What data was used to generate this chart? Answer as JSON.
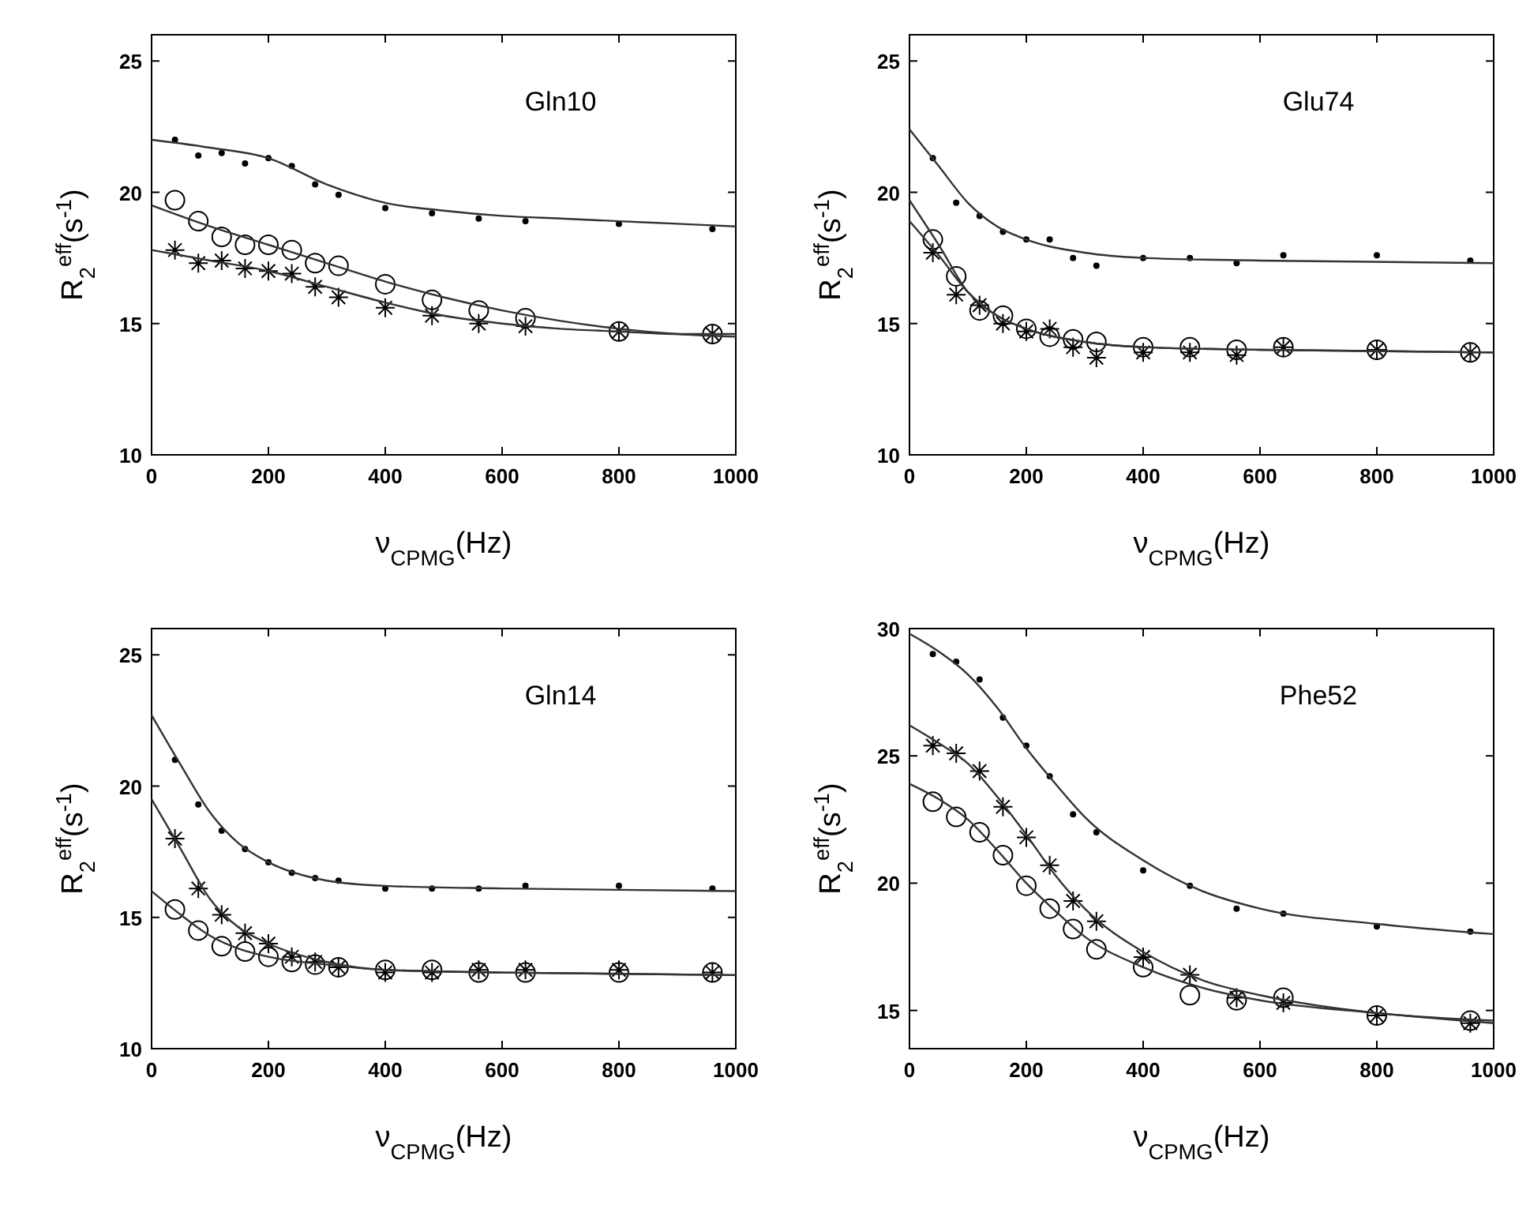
{
  "chart_data": [
    {
      "type": "scatter",
      "title": "Gln10",
      "xlabel": "ν$_{CPMG}$(Hz)",
      "ylabel": "R$_{2}$$^{eff}$(s$^{-1}$)",
      "xlim": [
        0,
        1000
      ],
      "ylim": [
        10,
        26
      ],
      "xticks": [
        0,
        200,
        400,
        600,
        800,
        1000
      ],
      "yticks": [
        10,
        15,
        20,
        25
      ],
      "grid": false,
      "series": [
        {
          "marker": "point",
          "color": "#000000",
          "x": [
            40,
            80,
            120,
            160,
            200,
            240,
            280,
            320,
            400,
            480,
            560,
            640,
            800,
            960
          ],
          "values": [
            22.0,
            21.4,
            21.5,
            21.1,
            21.3,
            21.0,
            20.3,
            19.9,
            19.4,
            19.2,
            19.0,
            18.9,
            18.8,
            18.6
          ]
        },
        {
          "type": "scatter",
          "marker": "circle",
          "color": "#000000",
          "x": [
            40,
            80,
            120,
            160,
            200,
            240,
            280,
            320,
            400,
            480,
            560,
            640,
            800,
            960
          ],
          "values": [
            19.7,
            18.9,
            18.3,
            18.0,
            18.0,
            17.8,
            17.3,
            17.2,
            16.5,
            15.9,
            15.5,
            15.2,
            14.7,
            14.6
          ]
        },
        {
          "marker": "cross",
          "color": "#000000",
          "x": [
            40,
            80,
            120,
            160,
            200,
            240,
            280,
            320,
            400,
            480,
            560,
            640,
            800,
            960
          ],
          "values": [
            17.8,
            17.3,
            17.4,
            17.1,
            17.0,
            16.9,
            16.4,
            16.0,
            15.6,
            15.3,
            15.0,
            14.9,
            14.7,
            14.6
          ]
        },
        {
          "type": "line",
          "marker": "none",
          "color": "#333333",
          "x": [
            0,
            100,
            200,
            300,
            400,
            500,
            600,
            700,
            800,
            900,
            1000
          ],
          "values": [
            22.0,
            21.7,
            21.3,
            20.3,
            19.6,
            19.3,
            19.1,
            19.0,
            18.9,
            18.8,
            18.7
          ]
        },
        {
          "type": "line",
          "marker": "none",
          "color": "#333333",
          "x": [
            0,
            100,
            200,
            300,
            400,
            500,
            600,
            700,
            800,
            900,
            1000
          ],
          "values": [
            19.5,
            18.7,
            18.0,
            17.3,
            16.6,
            16.0,
            15.5,
            15.1,
            14.8,
            14.6,
            14.5
          ]
        },
        {
          "type": "line",
          "marker": "none",
          "color": "#333333",
          "x": [
            0,
            100,
            200,
            300,
            400,
            500,
            600,
            700,
            800,
            900,
            1000
          ],
          "values": [
            17.8,
            17.4,
            17.0,
            16.4,
            15.8,
            15.3,
            15.0,
            14.8,
            14.7,
            14.6,
            14.6
          ]
        }
      ]
    },
    {
      "type": "scatter",
      "title": "Glu74",
      "xlabel": "ν$_{CPMG}$(Hz)",
      "ylabel": "R$_{2}$$^{eff}$(s$^{-1}$)",
      "xlim": [
        0,
        1000
      ],
      "ylim": [
        10,
        26
      ],
      "xticks": [
        0,
        200,
        400,
        600,
        800,
        1000
      ],
      "yticks": [
        10,
        15,
        20,
        25
      ],
      "grid": false,
      "series": [
        {
          "marker": "point",
          "color": "#000000",
          "x": [
            40,
            80,
            120,
            160,
            200,
            240,
            280,
            320,
            400,
            480,
            560,
            640,
            800,
            960
          ],
          "values": [
            21.3,
            19.6,
            19.1,
            18.5,
            18.2,
            18.2,
            17.5,
            17.2,
            17.5,
            17.5,
            17.3,
            17.6,
            17.6,
            17.4
          ]
        },
        {
          "type": "scatter",
          "marker": "circle",
          "color": "#000000",
          "x": [
            40,
            80,
            120,
            160,
            200,
            240,
            280,
            320,
            400,
            480,
            560,
            640,
            800,
            960
          ],
          "values": [
            18.2,
            16.8,
            15.5,
            15.3,
            14.8,
            14.5,
            14.4,
            14.3,
            14.1,
            14.1,
            14.0,
            14.1,
            14.0,
            13.9
          ]
        },
        {
          "marker": "cross",
          "color": "#000000",
          "x": [
            40,
            80,
            120,
            160,
            200,
            240,
            280,
            320,
            400,
            480,
            560,
            640,
            800,
            960
          ],
          "values": [
            17.7,
            16.1,
            15.7,
            15.0,
            14.7,
            14.8,
            14.1,
            13.7,
            13.9,
            13.9,
            13.8,
            14.1,
            14.0,
            13.9
          ]
        },
        {
          "type": "line",
          "marker": "none",
          "color": "#333333",
          "x": [
            0,
            50,
            100,
            150,
            200,
            300,
            400,
            600,
            1000
          ],
          "values": [
            22.4,
            21.0,
            19.6,
            18.7,
            18.2,
            17.7,
            17.5,
            17.4,
            17.3
          ]
        },
        {
          "type": "line",
          "marker": "none",
          "color": "#333333",
          "x": [
            0,
            50,
            100,
            150,
            200,
            300,
            400,
            600,
            1000
          ],
          "values": [
            19.7,
            18.0,
            16.2,
            15.3,
            14.8,
            14.3,
            14.1,
            14.0,
            13.9
          ]
        },
        {
          "type": "line",
          "marker": "none",
          "color": "#333333",
          "x": [
            0,
            50,
            100,
            150,
            200,
            300,
            400,
            600,
            1000
          ],
          "values": [
            18.9,
            17.6,
            16.2,
            15.3,
            14.8,
            14.3,
            14.1,
            14.0,
            13.9
          ]
        }
      ]
    },
    {
      "type": "scatter",
      "title": "Gln14",
      "xlabel": "ν$_{CPMG}$(Hz)",
      "ylabel": "R$_{2}$$^{eff}$(s$^{-1}$)",
      "xlim": [
        0,
        1000
      ],
      "ylim": [
        10,
        26
      ],
      "xticks": [
        0,
        200,
        400,
        600,
        800,
        1000
      ],
      "yticks": [
        10,
        15,
        20,
        25
      ],
      "grid": false,
      "series": [
        {
          "marker": "point",
          "color": "#000000",
          "x": [
            40,
            80,
            120,
            160,
            200,
            240,
            280,
            320,
            400,
            480,
            560,
            640,
            800,
            960
          ],
          "values": [
            21.0,
            19.3,
            18.3,
            17.6,
            17.1,
            16.7,
            16.5,
            16.4,
            16.1,
            16.1,
            16.1,
            16.2,
            16.2,
            16.1
          ]
        },
        {
          "type": "scatter",
          "marker": "circle",
          "color": "#000000",
          "x": [
            40,
            80,
            120,
            160,
            200,
            240,
            280,
            320,
            400,
            480,
            560,
            640,
            800,
            960
          ],
          "values": [
            15.3,
            14.5,
            13.9,
            13.7,
            13.5,
            13.3,
            13.2,
            13.1,
            13.0,
            13.0,
            12.9,
            12.9,
            12.9,
            12.9
          ]
        },
        {
          "marker": "cross",
          "color": "#000000",
          "x": [
            40,
            80,
            120,
            160,
            200,
            240,
            280,
            320,
            400,
            480,
            560,
            640,
            800,
            960
          ],
          "values": [
            18.0,
            16.1,
            15.1,
            14.4,
            14.0,
            13.5,
            13.3,
            13.1,
            12.9,
            12.9,
            13.0,
            13.0,
            13.0,
            12.9
          ]
        },
        {
          "type": "line",
          "marker": "none",
          "color": "#333333",
          "x": [
            0,
            50,
            100,
            150,
            200,
            300,
            400,
            600,
            1000
          ],
          "values": [
            22.7,
            20.8,
            19.0,
            17.8,
            17.1,
            16.4,
            16.2,
            16.1,
            16.0
          ]
        },
        {
          "type": "line",
          "marker": "none",
          "color": "#333333",
          "x": [
            0,
            50,
            100,
            150,
            200,
            300,
            400,
            600,
            1000
          ],
          "values": [
            16.0,
            15.1,
            14.3,
            13.8,
            13.5,
            13.2,
            13.0,
            12.9,
            12.8
          ]
        },
        {
          "type": "line",
          "marker": "none",
          "color": "#333333",
          "x": [
            0,
            50,
            100,
            150,
            200,
            300,
            400,
            600,
            1000
          ],
          "values": [
            19.5,
            17.6,
            15.7,
            14.6,
            14.0,
            13.3,
            13.0,
            12.9,
            12.8
          ]
        }
      ]
    },
    {
      "type": "scatter",
      "title": "Phe52",
      "xlabel": "ν$_{CPMG}$(Hz)",
      "ylabel": "R$_{2}$$^{eff}$(s$^{-1}$)",
      "xlim": [
        0,
        1000
      ],
      "ylim": [
        13.5,
        30
      ],
      "xticks": [
        0,
        200,
        400,
        600,
        800,
        1000
      ],
      "yticks": [
        15,
        20,
        25,
        30
      ],
      "grid": false,
      "series": [
        {
          "marker": "point",
          "color": "#000000",
          "x": [
            40,
            80,
            120,
            160,
            200,
            240,
            280,
            320,
            400,
            480,
            560,
            640,
            800,
            960
          ],
          "values": [
            29.0,
            28.7,
            28.0,
            26.5,
            25.4,
            24.2,
            22.7,
            22.0,
            20.5,
            19.9,
            19.0,
            18.8,
            18.3,
            18.1
          ]
        },
        {
          "type": "scatter",
          "marker": "circle",
          "color": "#000000",
          "x": [
            40,
            80,
            120,
            160,
            200,
            240,
            280,
            320,
            400,
            480,
            560,
            640,
            800,
            960
          ],
          "values": [
            23.2,
            22.6,
            22.0,
            21.1,
            19.9,
            19.0,
            18.2,
            17.4,
            16.7,
            15.6,
            15.4,
            15.5,
            14.8,
            14.6
          ]
        },
        {
          "marker": "cross",
          "color": "#000000",
          "x": [
            40,
            80,
            120,
            160,
            200,
            240,
            280,
            320,
            400,
            480,
            560,
            640,
            800,
            960
          ],
          "values": [
            25.4,
            25.1,
            24.4,
            23.0,
            21.8,
            20.7,
            19.3,
            18.5,
            17.1,
            16.4,
            15.5,
            15.3,
            14.8,
            14.5
          ]
        },
        {
          "type": "line",
          "marker": "none",
          "color": "#333333",
          "x": [
            0,
            50,
            100,
            150,
            200,
            250,
            300,
            400,
            500,
            600,
            800,
            1000
          ],
          "values": [
            29.8,
            29.1,
            28.2,
            26.9,
            25.3,
            23.9,
            22.6,
            20.9,
            19.7,
            19.0,
            18.4,
            18.0
          ]
        },
        {
          "type": "line",
          "marker": "none",
          "color": "#333333",
          "x": [
            0,
            50,
            100,
            150,
            200,
            250,
            300,
            400,
            500,
            600,
            800,
            1000
          ],
          "values": [
            23.9,
            23.3,
            22.5,
            21.3,
            20.0,
            18.9,
            17.9,
            16.7,
            15.9,
            15.4,
            14.9,
            14.5
          ]
        },
        {
          "type": "line",
          "marker": "none",
          "color": "#333333",
          "x": [
            0,
            50,
            100,
            150,
            200,
            250,
            300,
            400,
            500,
            600,
            800,
            1000
          ],
          "values": [
            26.2,
            25.5,
            24.7,
            23.4,
            21.9,
            20.3,
            19.0,
            17.3,
            16.2,
            15.6,
            14.9,
            14.6
          ]
        }
      ]
    }
  ]
}
